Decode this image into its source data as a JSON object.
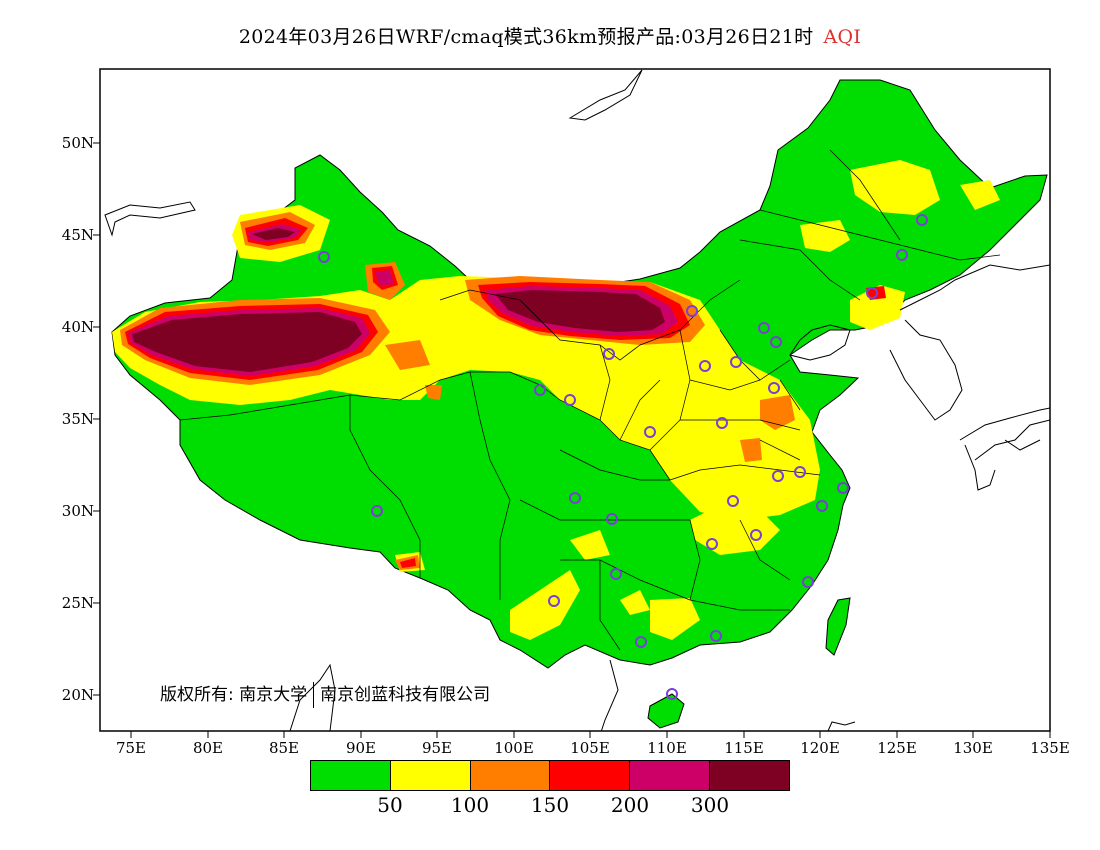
{
  "title": {
    "text": "2024年03月26日WRF/cmaq模式36km预报产品:03月26日21时",
    "variable": "AQI",
    "variable_color": "#e03030"
  },
  "map": {
    "lon_range": [
      73,
      135
    ],
    "lat_range": [
      18,
      54
    ],
    "lat_ticks": [
      "50N",
      "45N",
      "40N",
      "35N",
      "30N",
      "25N",
      "20N"
    ],
    "lon_ticks": [
      "75E",
      "80E",
      "85E",
      "90E",
      "95E",
      "100E",
      "105E",
      "110E",
      "115E",
      "120E",
      "125E",
      "130E",
      "135E"
    ],
    "station_marker_color": "#7a3fd6"
  },
  "legend": {
    "colors": [
      "#00dd00",
      "#ffff00",
      "#ff7e00",
      "#ff0000",
      "#cc0066",
      "#7e0023"
    ],
    "levels": [
      "50",
      "100",
      "150",
      "200",
      "300"
    ]
  },
  "copyright": {
    "prefix": "版权所有:",
    "org1": "南京大学",
    "org2": "南京创蓝科技有限公司"
  }
}
